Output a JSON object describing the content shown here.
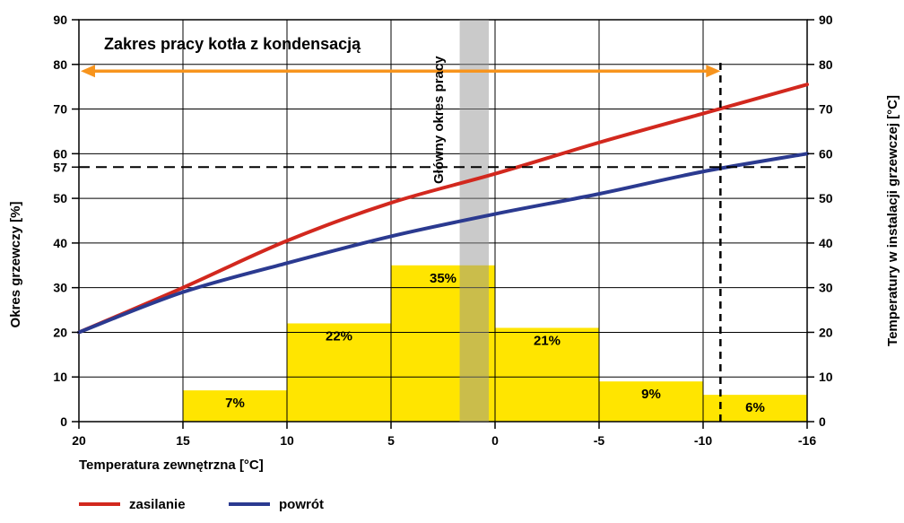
{
  "chart_data": {
    "type": "line+bar",
    "title": "Zakres pracy kotła z kondensacją",
    "main_period_label": "Główny okres pracy",
    "xlabel": "Temperatura zewnętrzna [°C]",
    "ylabel_left": "Okres grzewczy [%]",
    "ylabel_right": "Temperatury w instalacji grzewczej [°C]",
    "x_tick_values": [
      20,
      15,
      10,
      5,
      0,
      -5,
      -10,
      -16
    ],
    "x_tick_labels": [
      "20",
      "15",
      "10",
      "5",
      "0",
      "-5",
      "-10",
      "-16"
    ],
    "y_ticks": [
      0,
      10,
      20,
      30,
      40,
      50,
      60,
      70,
      80,
      90
    ],
    "ylim": [
      0,
      90
    ],
    "special_left_tick": "57",
    "grid": true,
    "bar_color": "#FFE500",
    "bars": [
      {
        "from": 15,
        "to": 10,
        "value": 7,
        "label": "7%"
      },
      {
        "from": 10,
        "to": 5,
        "value": 22,
        "label": "22%"
      },
      {
        "from": 5,
        "to": 0,
        "value": 35,
        "label": "35%"
      },
      {
        "from": 0,
        "to": -5,
        "value": 21,
        "label": "21%"
      },
      {
        "from": -5,
        "to": -10,
        "value": 9,
        "label": "9%"
      },
      {
        "from": -10,
        "to": -16,
        "value": 6,
        "label": "6%"
      }
    ],
    "series": [
      {
        "name": "zasilanie",
        "color": "#D2281E",
        "x": [
          20,
          15,
          10,
          5,
          0,
          -5,
          -10,
          -16
        ],
        "values": [
          20,
          30,
          40.5,
          49,
          55.5,
          62.5,
          69,
          75.5
        ]
      },
      {
        "name": "powrót",
        "color": "#2B3A90",
        "x": [
          20,
          15,
          10,
          5,
          0,
          -5,
          -10,
          -16
        ],
        "values": [
          20,
          29,
          35.5,
          41.5,
          46.5,
          51,
          56,
          60
        ]
      }
    ],
    "reference_lines": {
      "horizontal_value": 57,
      "vertical_temperature": -11
    },
    "highlight_band": {
      "from_temperature": 1.7,
      "to_temperature": 0.3,
      "fill": "rgba(150,150,150,0.5)"
    },
    "range_arrow": {
      "from_temperature": 20,
      "to_temperature": -11,
      "y_value": 78.5,
      "color": "#F7941D"
    },
    "legend": [
      {
        "label": "zasilanie",
        "color": "#D2281E"
      },
      {
        "label": "powrót",
        "color": "#2B3A90"
      }
    ]
  }
}
